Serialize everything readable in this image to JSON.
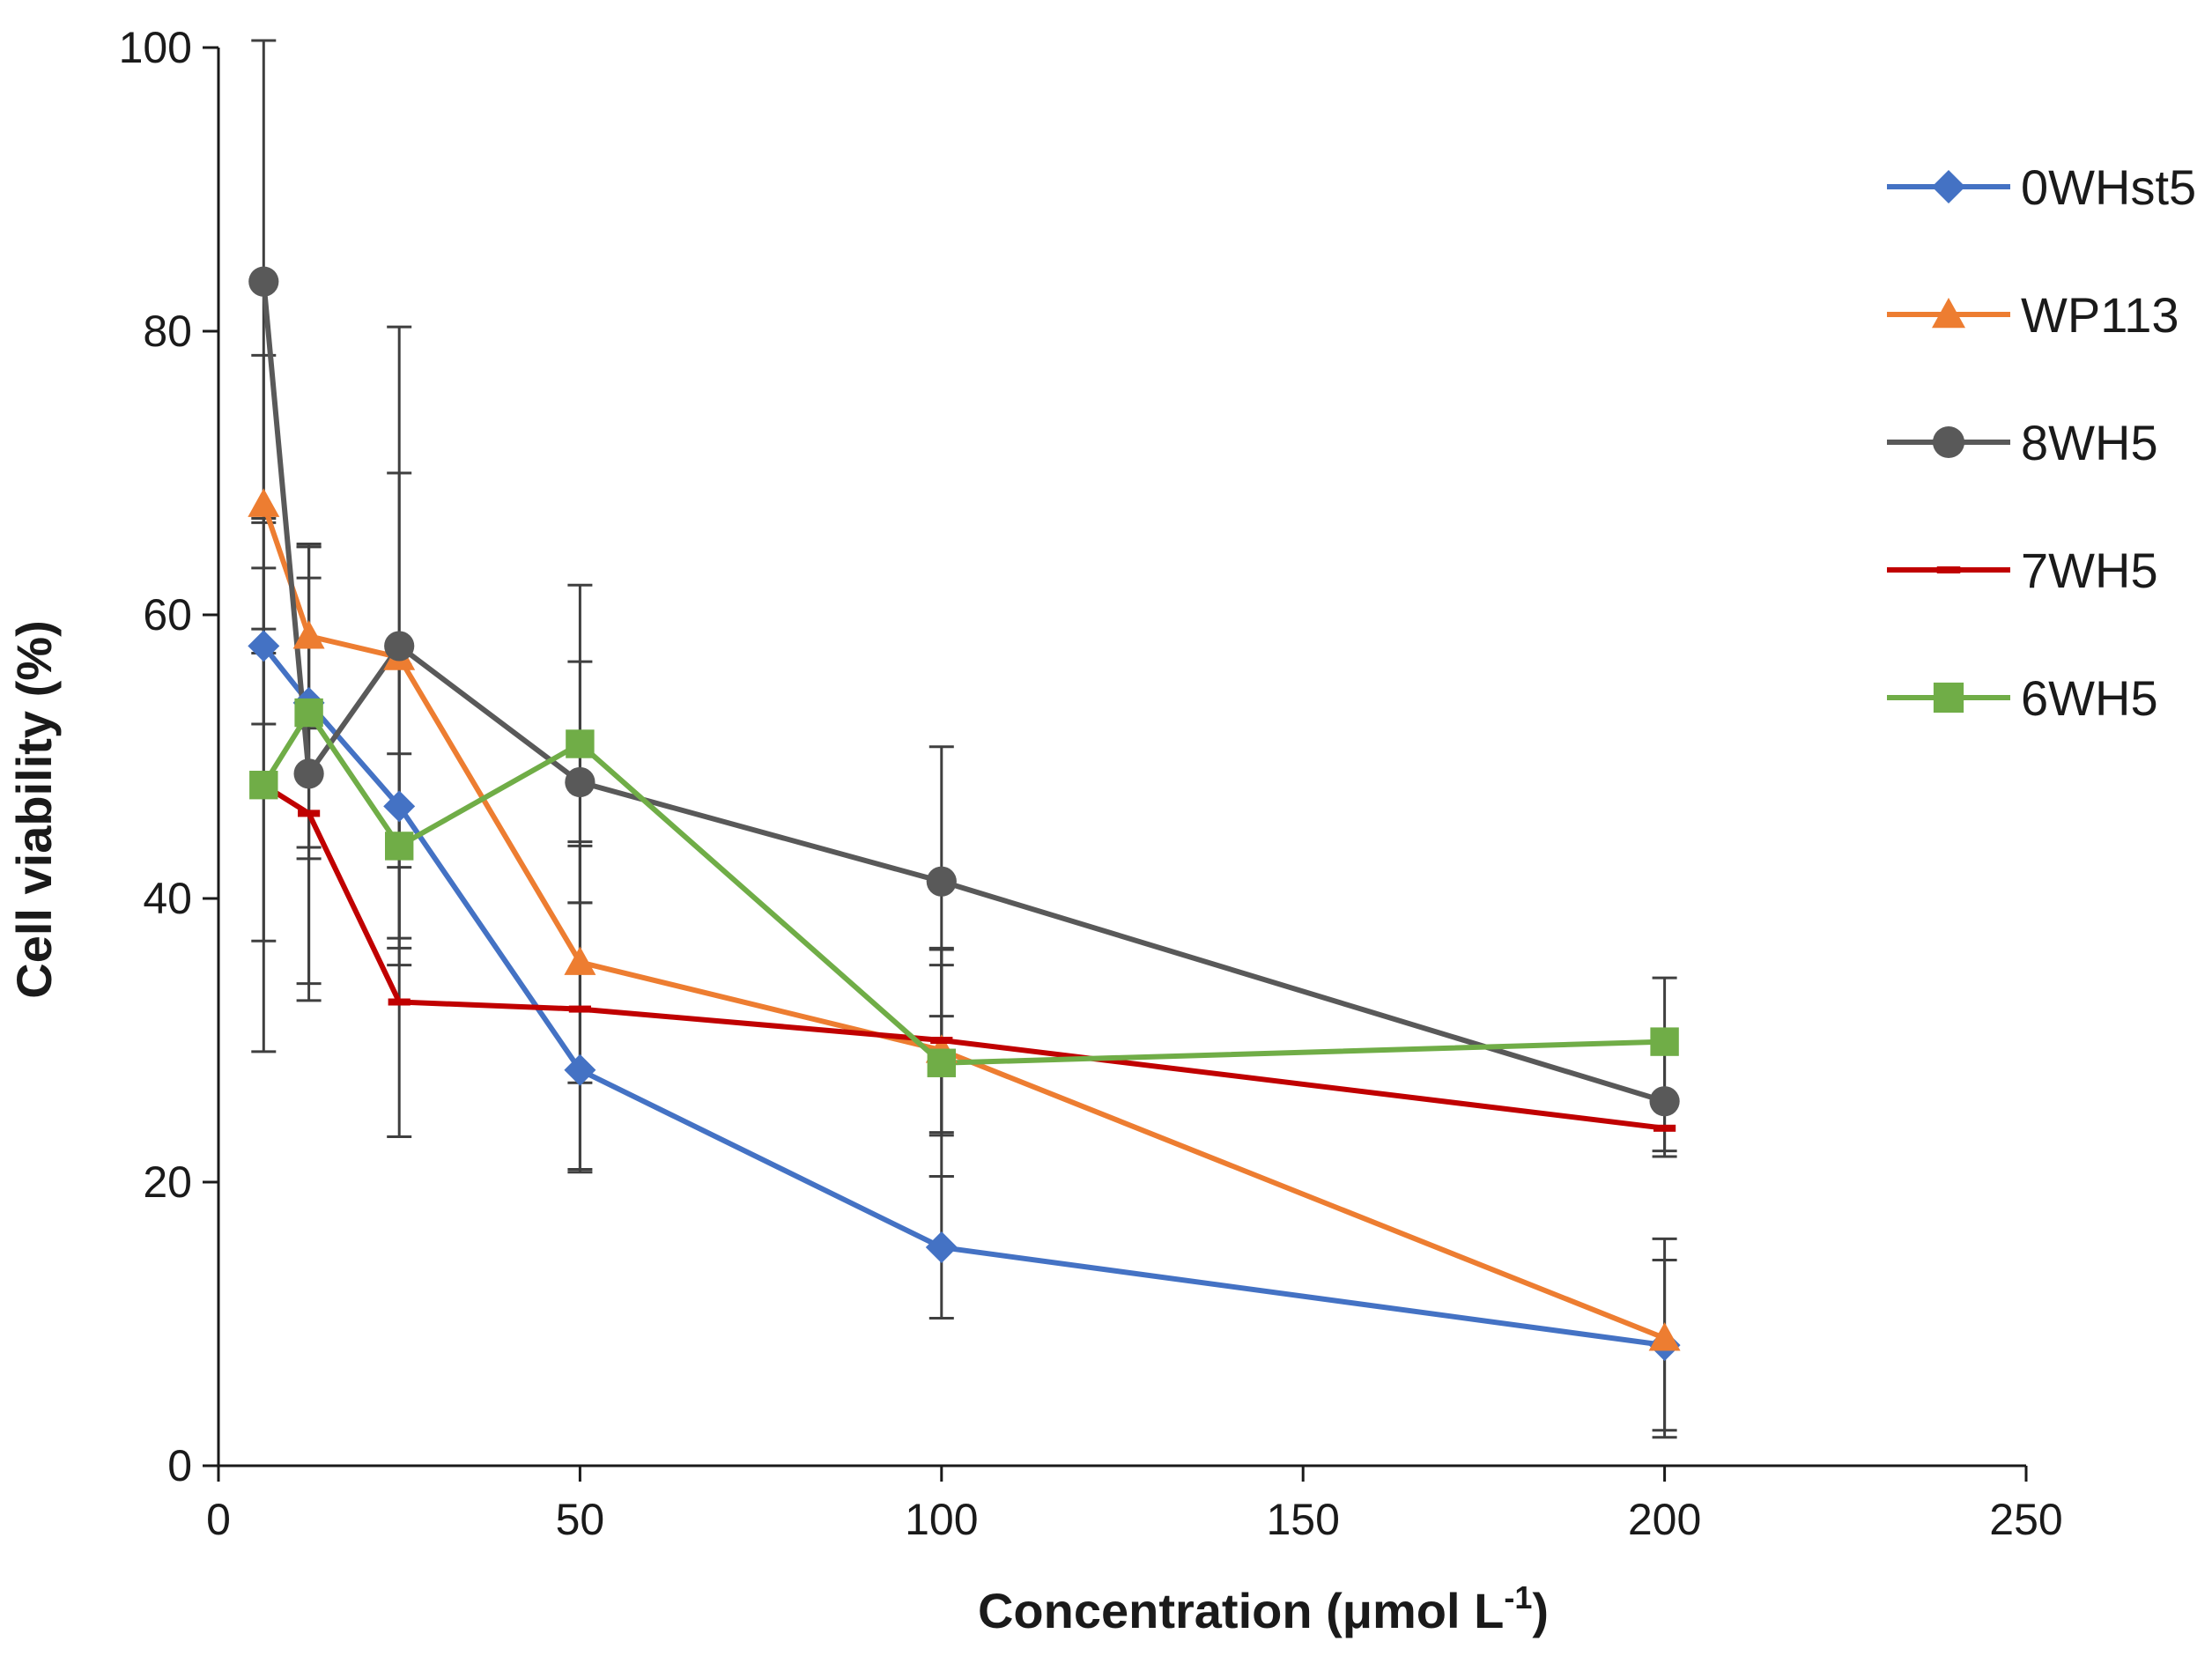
{
  "chart_data": {
    "type": "line",
    "title": "",
    "xlabel": "Concentration (μmol L",
    "xlabel_superscript": "-1",
    "xlabel_suffix": ")",
    "ylabel": "Cell viability (%)",
    "xlim": [
      0,
      250
    ],
    "ylim": [
      0,
      100
    ],
    "xticks": [
      0,
      50,
      100,
      150,
      200,
      250
    ],
    "yticks": [
      0,
      20,
      40,
      60,
      80,
      100
    ],
    "grid": false,
    "legend_position": "right",
    "x": [
      6.25,
      12.5,
      25,
      50,
      100,
      200
    ],
    "series": [
      {
        "name": "0WHst5",
        "color": "#4472C4",
        "marker": "diamond",
        "values": [
          57.8,
          53.8,
          46.5,
          27.9,
          15.4,
          8.5
        ],
        "errors": [
          5.5,
          11.0,
          10.0,
          7.0,
          5.0,
          6.0
        ]
      },
      {
        "name": "WP113",
        "color": "#ED7D31",
        "marker": "triangle",
        "values": [
          67.8,
          58.5,
          57.0,
          35.5,
          29.3,
          9.0
        ],
        "errors": [
          10.5,
          6.5,
          13.0,
          8.5,
          6.0,
          7.0
        ]
      },
      {
        "name": "8WH5",
        "color": "#595959",
        "marker": "circle",
        "values": [
          83.5,
          48.8,
          57.8,
          48.2,
          41.2,
          25.7
        ],
        "errors": [
          17.0,
          16.0,
          22.5,
          8.5,
          9.5,
          3.5
        ]
      },
      {
        "name": "7WH5",
        "color": "#C00000",
        "marker": "dash",
        "values": [
          48.0,
          46.0,
          32.7,
          32.2,
          30.0,
          23.8
        ],
        "errors": [
          11.0,
          12.0,
          9.5,
          11.5,
          6.5,
          2.0
        ]
      },
      {
        "name": "6WH5",
        "color": "#70AD47",
        "marker": "square",
        "values": [
          48.0,
          53.1,
          43.7,
          50.9,
          28.4,
          29.9
        ],
        "errors": [
          18.8,
          9.5,
          6.5,
          11.2,
          8.0,
          4.5
        ]
      }
    ]
  }
}
